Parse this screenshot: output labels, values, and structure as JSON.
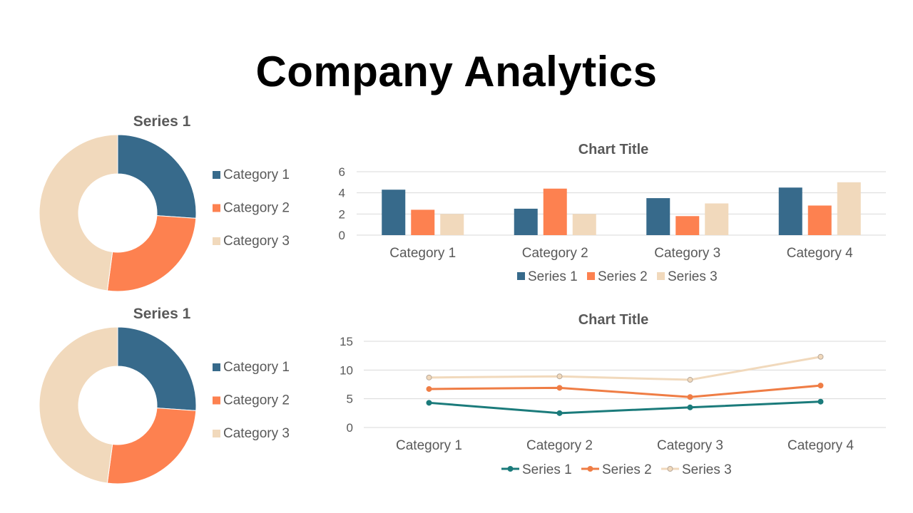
{
  "slide": {
    "title": "Company Analytics"
  },
  "colors": {
    "series1": "#376a8b",
    "series2": "#fd8150",
    "series3": "#f1d9bc",
    "line1": "#1b7b7b",
    "line2": "#ef7d45",
    "line3": "#f1d9bc"
  },
  "chart_data": [
    {
      "type": "pie",
      "variant": "doughnut",
      "title": "Series 1",
      "labels": [
        "Category 1",
        "Category 2",
        "Category 3"
      ],
      "values": [
        4.3,
        4.3,
        7.9
      ],
      "colors": [
        "#376a8b",
        "#fd8150",
        "#f1d9bc"
      ],
      "legend": "right"
    },
    {
      "type": "bar",
      "title": "Chart Title",
      "categories": [
        "Category 1",
        "Category 2",
        "Category 3",
        "Category 4"
      ],
      "series": [
        {
          "name": "Series 1",
          "values": [
            4.3,
            2.5,
            3.5,
            4.5
          ],
          "color": "#376a8b"
        },
        {
          "name": "Series 2",
          "values": [
            2.4,
            4.4,
            1.8,
            2.8
          ],
          "color": "#fd8150"
        },
        {
          "name": "Series 3",
          "values": [
            2.0,
            2.0,
            3.0,
            5.0
          ],
          "color": "#f1d9bc"
        }
      ],
      "yticks": [
        "0",
        "2",
        "4",
        "6"
      ],
      "ylim": [
        0,
        6
      ],
      "grid": true,
      "legend": "bottom"
    },
    {
      "type": "pie",
      "variant": "doughnut",
      "title": "Series 1",
      "labels": [
        "Category 1",
        "Category 2",
        "Category 3"
      ],
      "values": [
        4.3,
        4.3,
        7.9
      ],
      "colors": [
        "#376a8b",
        "#fd8150",
        "#f1d9bc"
      ],
      "legend": "right"
    },
    {
      "type": "line",
      "stacked": true,
      "title": "Chart Title",
      "categories": [
        "Category 1",
        "Category 2",
        "Category 3",
        "Category 4"
      ],
      "series": [
        {
          "name": "Series 1",
          "values": [
            4.3,
            2.5,
            3.5,
            4.5
          ],
          "color": "#1b7b7b"
        },
        {
          "name": "Series 2",
          "values": [
            2.4,
            4.4,
            1.8,
            2.8
          ],
          "color": "#ef7d45"
        },
        {
          "name": "Series 3",
          "values": [
            2.0,
            2.0,
            3.0,
            5.0
          ],
          "color": "#f1d9bc"
        }
      ],
      "yticks": [
        "0",
        "5",
        "10",
        "15"
      ],
      "ylim": [
        0,
        15
      ],
      "grid": true,
      "legend": "bottom"
    }
  ]
}
